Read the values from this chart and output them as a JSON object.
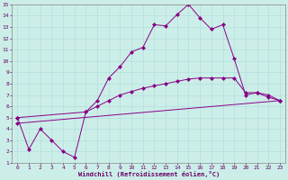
{
  "xlabel": "Windchill (Refroidissement éolien,°C)",
  "bg_color": "#cceee8",
  "line_color": "#880088",
  "xlim": [
    -0.5,
    23.5
  ],
  "ylim": [
    1,
    15
  ],
  "xticks": [
    0,
    1,
    2,
    3,
    4,
    5,
    6,
    7,
    8,
    9,
    10,
    11,
    12,
    13,
    14,
    15,
    16,
    17,
    18,
    19,
    20,
    21,
    22,
    23
  ],
  "yticks": [
    1,
    2,
    3,
    4,
    5,
    6,
    7,
    8,
    9,
    10,
    11,
    12,
    13,
    14,
    15
  ],
  "line1_x": [
    0,
    1,
    2,
    3,
    4,
    5,
    6,
    7,
    8,
    9,
    10,
    11,
    12,
    13,
    14,
    15,
    16,
    17,
    18,
    19,
    20,
    21,
    22,
    23
  ],
  "line1_y": [
    5.0,
    2.2,
    4.0,
    3.0,
    2.0,
    1.5,
    5.5,
    6.5,
    8.5,
    9.5,
    10.8,
    11.2,
    13.2,
    13.1,
    14.1,
    15.0,
    13.8,
    12.8,
    13.2,
    10.2,
    7.0,
    7.2,
    6.8,
    6.5
  ],
  "line2_x": [
    0,
    6,
    7,
    8,
    9,
    10,
    11,
    12,
    13,
    14,
    15,
    16,
    17,
    18,
    19,
    20,
    21,
    22,
    23
  ],
  "line2_y": [
    5.0,
    5.5,
    6.0,
    6.5,
    7.0,
    7.3,
    7.6,
    7.8,
    8.0,
    8.2,
    8.4,
    8.5,
    8.5,
    8.5,
    8.5,
    7.2,
    7.2,
    7.0,
    6.5
  ],
  "line3_x": [
    0,
    23
  ],
  "line3_y": [
    4.5,
    6.5
  ],
  "marker": "D",
  "markersize": 2.5,
  "grid_color": "#aadddd"
}
